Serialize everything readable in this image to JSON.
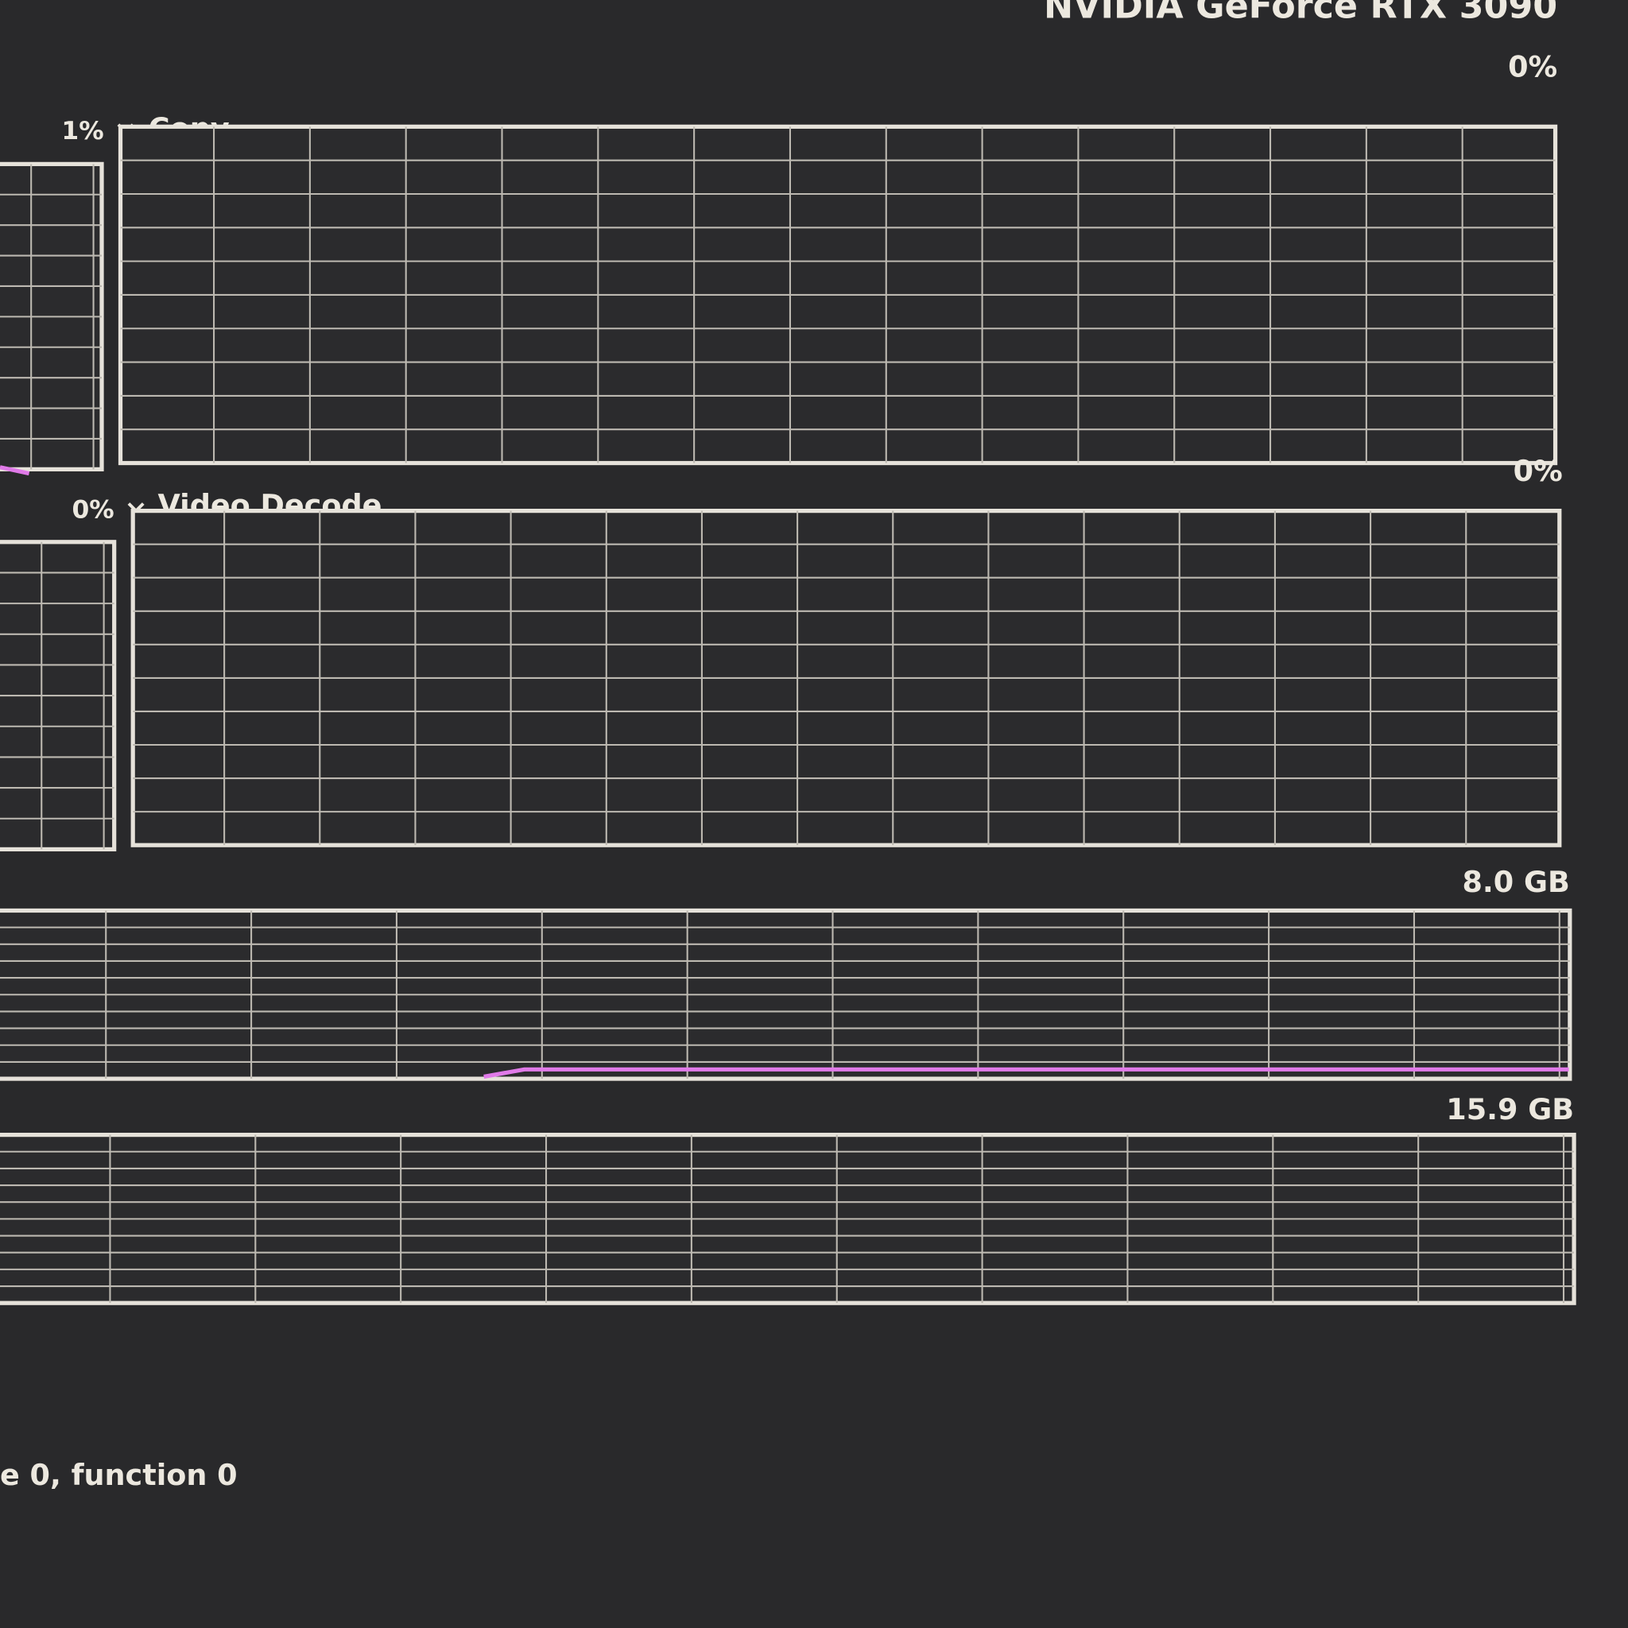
{
  "header": {
    "title": "NVIDIA GeForce RTX 3090"
  },
  "engines": [
    {
      "percent_left": "1%",
      "label": "Copy",
      "max": "0%"
    },
    {
      "percent_left": "0%",
      "label": "Video Decode",
      "max": "0%"
    }
  ],
  "memory": [
    {
      "max": "8.0 GB"
    },
    {
      "max": "15.9 GB"
    }
  ],
  "footer": {
    "location": "e 0, function 0"
  }
}
